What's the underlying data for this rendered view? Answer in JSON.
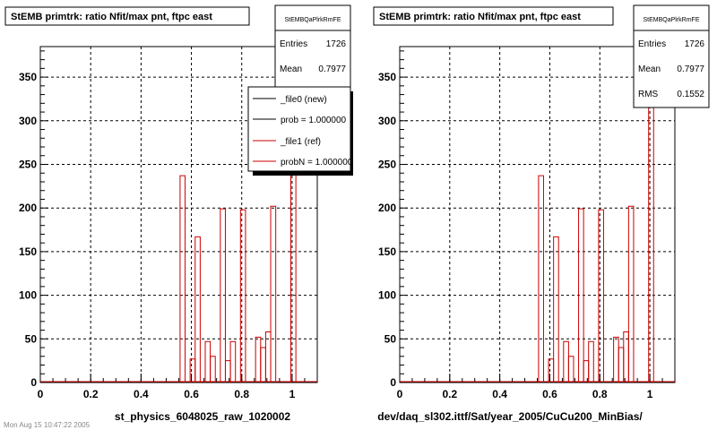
{
  "colors": {
    "background": "#ffffff",
    "frame": "#000000",
    "grid": "#000000",
    "ref_histogram": "#cc0000",
    "new_histogram": "#000000"
  },
  "footer_text": "Mon Aug 15 10:47:22 2005",
  "panels": [
    {
      "title": "StEMB primtrk: ratio Nfit/max pnt, ftpc east",
      "stats": {
        "name": "StEMBQaPlrkRmFE",
        "rows": [
          {
            "label": "Entries",
            "value": "1726"
          },
          {
            "label": "Mean",
            "value": "0.7977"
          }
        ]
      },
      "legend": {
        "entries": [
          {
            "text": "_file0 (new)",
            "color": "#000000"
          },
          {
            "text": "prob = 1.000000",
            "color": "#000000"
          },
          {
            "text": "_file1 (ref)",
            "color": "#cc0000"
          },
          {
            "text": "probN = 1.000000",
            "color": "#cc0000"
          }
        ]
      },
      "xlabel": "st_physics_6048025_raw_1020002"
    },
    {
      "title": "StEMB primtrk: ratio Nfit/max pnt, ftpc east",
      "stats": {
        "name": "StEMBQaPlrkRmFE",
        "rows": [
          {
            "label": "Entries",
            "value": "1726"
          },
          {
            "label": "Mean",
            "value": "0.7977"
          },
          {
            "label": "RMS",
            "value": "0.1552"
          }
        ]
      },
      "xlabel": "dev/daq_sl302.ittf/Sat/year_2005/CuCu200_MinBias/"
    }
  ],
  "chart_data": {
    "type": "bar",
    "x_range": [
      0,
      1.1
    ],
    "y_range": [
      0,
      385
    ],
    "grid": true,
    "x_ticks": [
      "0",
      "0.2",
      "0.4",
      "0.6",
      "0.8",
      "1"
    ],
    "x_tick_values": [
      0,
      0.2,
      0.4,
      0.6,
      0.8,
      1.0
    ],
    "y_ticks": [
      "0",
      "50",
      "100",
      "150",
      "200",
      "250",
      "300",
      "350"
    ],
    "y_tick_values": [
      0,
      50,
      100,
      150,
      200,
      250,
      300,
      350
    ],
    "bin_edges": [
      0.555,
      0.575,
      0.595,
      0.615,
      0.635,
      0.655,
      0.675,
      0.695,
      0.715,
      0.735,
      0.755,
      0.775,
      0.795,
      0.815,
      0.835,
      0.855,
      0.875,
      0.895,
      0.915,
      0.935,
      0.955,
      0.975,
      0.995,
      1.015
    ],
    "series": [
      {
        "name": "_file1 (ref)",
        "values": [
          237,
          0,
          27,
          167,
          0,
          47,
          30,
          0,
          199,
          25,
          47,
          0,
          198,
          0,
          0,
          52,
          40,
          58,
          202,
          0,
          0,
          0,
          368
        ]
      }
    ]
  }
}
